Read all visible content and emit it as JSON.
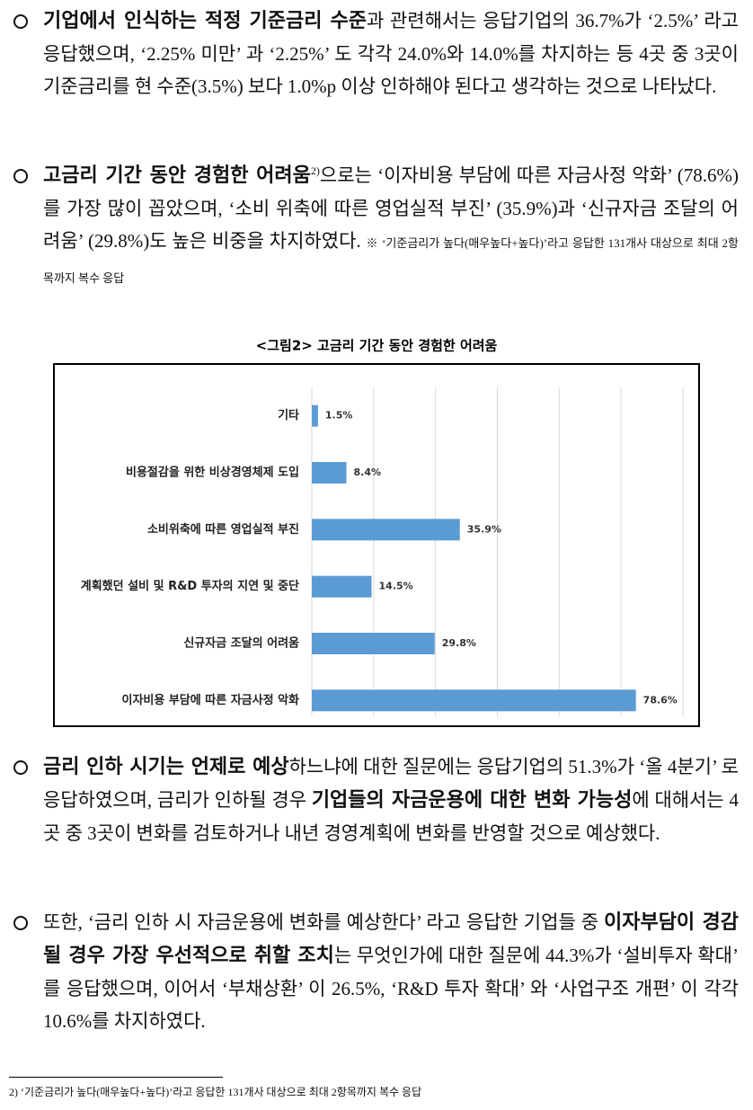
{
  "paragraphs": [
    {
      "segments": [
        {
          "text": "기업에서 인식하는 적정 기준금리 수준",
          "bold": true
        },
        {
          "text": "과 관련해서는 응답기업의 36.7%가 ‘2.5%’ 라고 응답했으며, ‘2.25% 미만’ 과 ‘2.25%’ 도 각각 24.0%와 14.0%를 차지하는 등 4곳 중 3곳이 기준금리를 현 수준(3.5%) 보다 1.0%p 이상 인하해야 된다고 생각하는 것으로 나타났다."
        }
      ]
    },
    {
      "segments": [
        {
          "text": "고금리 기간 동안 경험한 어려움",
          "bold": true
        },
        {
          "text": "2)",
          "sup": true
        },
        {
          "text": "으로는 ‘이자비용 부담에 따른 자금사정 악화’ (78.6%)를 가장 많이 꼽았으며, ‘소비 위축에 따른 영업실적 부진’ (35.9%)과 ‘신규자금 조달의 어려움’ (29.8%)도 높은 비중을 차지하였다. "
        },
        {
          "text": "※ ‘기준금리가 높다(매우높다+높다)’라고 응답한 131개사 대상으로 최대 2항목까지 복수 응답",
          "small": true
        }
      ]
    },
    {
      "segments": [
        {
          "text": "금리 인하 시기는 언제로 예상",
          "bold": true
        },
        {
          "text": "하느냐에 대한 질문에는 응답기업의 51.3%가 ‘올 4분기’ 로 응답하였으며, 금리가 인하될 경우 "
        },
        {
          "text": "기업들의 자금운용에 대한 변화 가능성",
          "bold": true
        },
        {
          "text": "에 대해서는 4곳 중 3곳이 변화를 검토하거나 내년 경영계획에 변화를 반영할 것으로 예상했다."
        }
      ]
    },
    {
      "segments": [
        {
          "text": "또한, ‘금리 인하 시 자금운용에 변화를 예상한다’ 라고 응답한 기업들 중 "
        },
        {
          "text": "이자부담이 경감될 경우 가장 우선적으로 취할 조치",
          "bold": true
        },
        {
          "text": "는 무엇인가에 대한 질문에 44.3%가 ‘설비투자 확대’ 를 응답했으며, 이어서 ‘부채상환’ 이 26.5%, ‘R&D 투자 확대’ 와 ‘사업구조 개편’ 이 각각 10.6%를 차지하였다."
        }
      ]
    }
  ],
  "chart_data": {
    "type": "hbar",
    "title": "<그림2> 고금리 기간 동안 경험한 어려움",
    "categories": [
      "기타",
      "비용절감을 위한 비상경영체제 도입",
      "소비위축에 따른 영업실적 부진",
      "계획했던 설비 및 R&D 투자의 지연 및 중단",
      "신규자금 조달의 어려움",
      "이자비용 부담에 따른 자금사정 악화"
    ],
    "values": [
      1.5,
      8.4,
      35.9,
      14.5,
      29.8,
      78.6
    ],
    "value_labels": [
      "1.5%",
      "8.4%",
      "35.9%",
      "14.5%",
      "29.8%",
      "78.6%"
    ],
    "color": "#5b9bd5",
    "xlim": [
      0,
      90
    ],
    "xticks": [
      0,
      15,
      30,
      45,
      60,
      75,
      90
    ],
    "grid": true
  },
  "footnote": "2) ‘기준금리가 높다(매우높다+높다)’라고 응답한 131개사 대상으로 최대 2항목까지 복수 응답"
}
